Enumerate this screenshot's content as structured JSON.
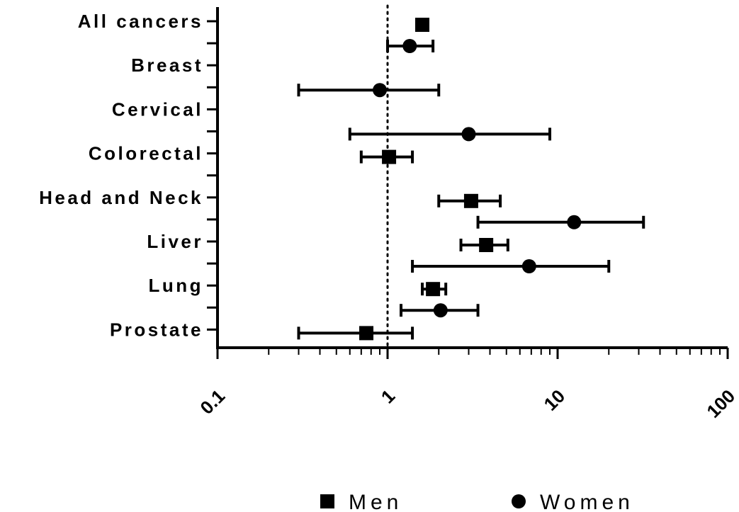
{
  "chart_data": {
    "type": "scatter",
    "subtype": "forest-plot",
    "x_scale": "log",
    "xlim": [
      0.1,
      100
    ],
    "x_ticks": [
      0.1,
      1,
      10,
      100
    ],
    "x_tick_labels": [
      "0.1",
      "1",
      "10",
      "100"
    ],
    "reference_line": 1,
    "reference_line_style": "dotted",
    "categories": [
      "All cancers",
      "Breast",
      "Cervical",
      "Colorectal",
      "Head and Neck",
      "Liver",
      "Lung",
      "Prostate"
    ],
    "series": [
      {
        "name": "Men",
        "marker": "square",
        "points": [
          {
            "category": "All cancers",
            "value": 1.6,
            "low": null,
            "high": null
          },
          {
            "category": "Colorectal",
            "value": 1.02,
            "low": 0.7,
            "high": 1.4
          },
          {
            "category": "Head and Neck",
            "value": 3.1,
            "low": 2.0,
            "high": 4.6
          },
          {
            "category": "Liver",
            "value": 3.8,
            "low": 2.7,
            "high": 5.1
          },
          {
            "category": "Lung",
            "value": 1.85,
            "low": 1.6,
            "high": 2.2
          },
          {
            "category": "Prostate",
            "value": 0.75,
            "low": 0.3,
            "high": 1.4
          }
        ]
      },
      {
        "name": "Women",
        "marker": "circle",
        "points": [
          {
            "category": "All cancers",
            "value": 1.35,
            "low": 1.0,
            "high": 1.85
          },
          {
            "category": "Breast",
            "value": 0.9,
            "low": 0.3,
            "high": 2.0
          },
          {
            "category": "Cervical",
            "value": 3.0,
            "low": 0.6,
            "high": 9.0
          },
          {
            "category": "Head and Neck",
            "value": 12.5,
            "low": 3.4,
            "high": 32
          },
          {
            "category": "Liver",
            "value": 6.8,
            "low": 1.4,
            "high": 20
          },
          {
            "category": "Lung",
            "value": 2.05,
            "low": 1.2,
            "high": 3.4
          }
        ]
      }
    ],
    "legend": {
      "position": "bottom",
      "entries": [
        "Men",
        "Women"
      ]
    },
    "grid": false,
    "colors": {
      "marker": "#000000",
      "axis": "#000000",
      "background": "#ffffff"
    }
  }
}
